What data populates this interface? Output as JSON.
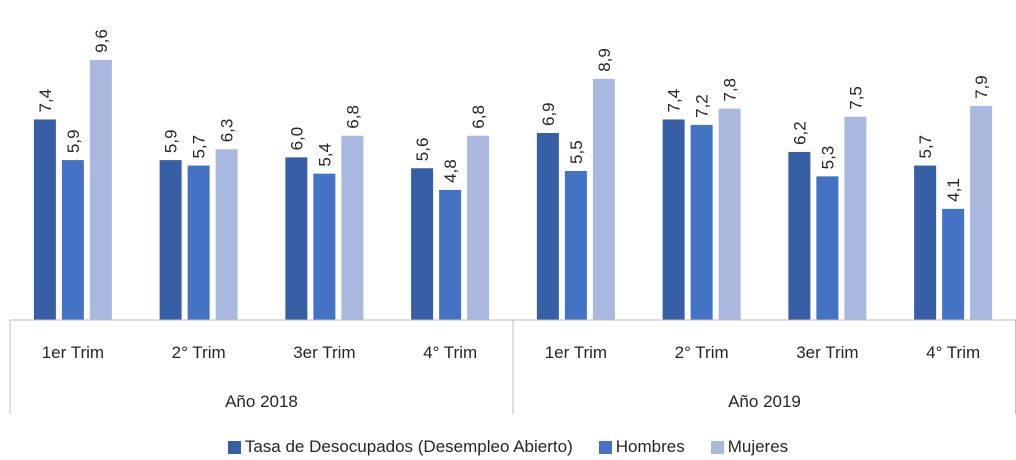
{
  "chart_data": {
    "type": "bar",
    "title": "",
    "xlabel": "",
    "ylabel": "",
    "ylim": [
      0,
      10
    ],
    "grid": false,
    "legend_position": "bottom",
    "groups": [
      {
        "label": "Año 2018",
        "categories": [
          "1er Trim",
          "2° Trim",
          "3er Trim",
          "4° Trim"
        ]
      },
      {
        "label": "Año 2019",
        "categories": [
          "1er Trim",
          "2° Trim",
          "3er Trim",
          "4° Trim"
        ]
      }
    ],
    "series": [
      {
        "name": "Tasa de Desocupados (Desempleo Abierto)",
        "color": "#365fa5",
        "values": [
          7.4,
          5.9,
          6.0,
          5.6,
          6.9,
          7.4,
          6.2,
          5.7
        ],
        "labels": [
          "7,4",
          "5,9",
          "6,0",
          "5,6",
          "6,9",
          "7,4",
          "6,2",
          "5,7"
        ]
      },
      {
        "name": "Hombres",
        "color": "#4472c4",
        "values": [
          5.9,
          5.7,
          5.4,
          4.8,
          5.5,
          7.2,
          5.3,
          4.1
        ],
        "labels": [
          "5,9",
          "5,7",
          "5,4",
          "4,8",
          "5,5",
          "7,2",
          "5,3",
          "4,1"
        ]
      },
      {
        "name": "Mujeres",
        "color": "#a9b8de",
        "values": [
          9.6,
          6.3,
          6.8,
          6.8,
          8.9,
          7.8,
          7.5,
          7.9
        ],
        "labels": [
          "9,6",
          "6,3",
          "6,8",
          "6,8",
          "8,9",
          "7,8",
          "7,5",
          "7,9"
        ]
      }
    ]
  }
}
